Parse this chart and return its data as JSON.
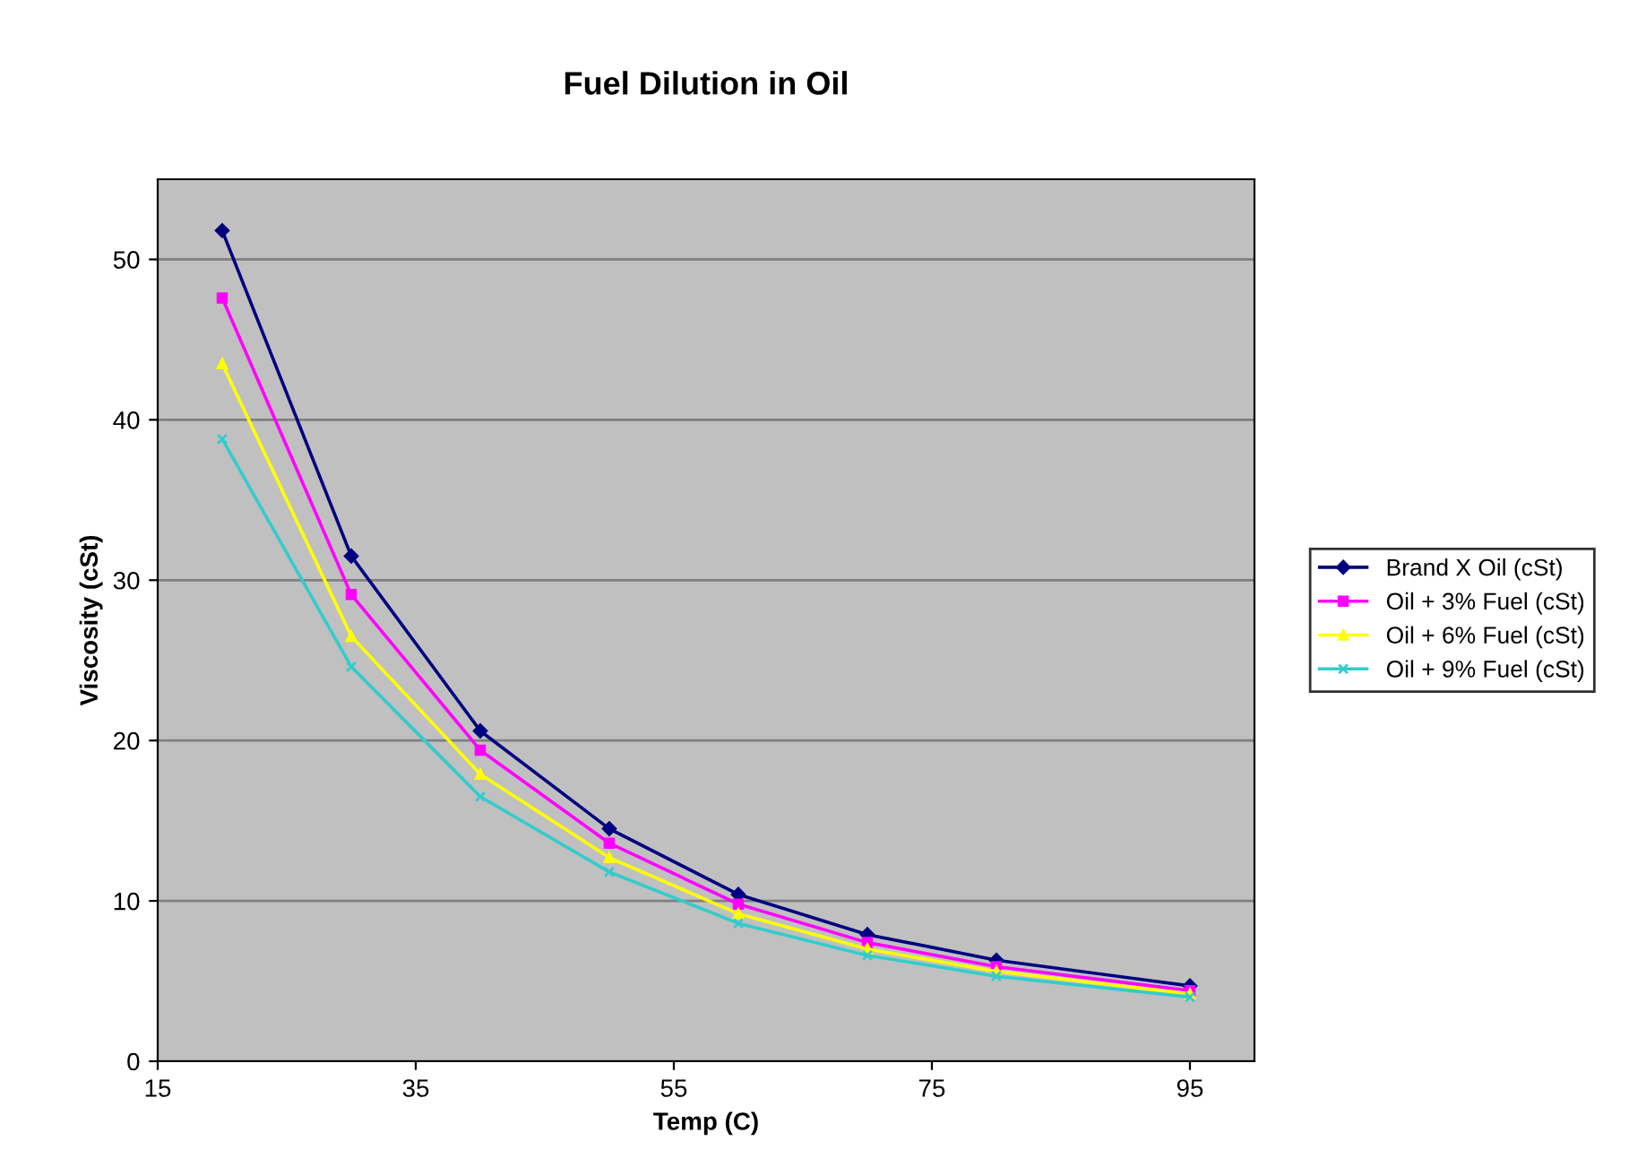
{
  "chart_data": {
    "type": "line",
    "title": "Fuel Dilution in Oil",
    "xlabel": "Temp (C)",
    "ylabel": "Viscosity (cSt)",
    "x": [
      20,
      30,
      40,
      50,
      60,
      70,
      80,
      95
    ],
    "series": [
      {
        "name": "Brand X Oil (cSt)",
        "color": "#000080",
        "marker": "diamond",
        "values": [
          51.8,
          31.5,
          20.6,
          14.5,
          10.4,
          7.9,
          6.3,
          4.7
        ]
      },
      {
        "name": "Oil + 3% Fuel (cSt)",
        "color": "#ff00ff",
        "marker": "square",
        "values": [
          47.6,
          29.1,
          19.4,
          13.6,
          9.8,
          7.4,
          5.9,
          4.4
        ]
      },
      {
        "name": "Oil + 6% Fuel (cSt)",
        "color": "#ffff00",
        "marker": "triangle",
        "values": [
          43.5,
          26.5,
          17.9,
          12.7,
          9.2,
          7.0,
          5.6,
          4.2
        ]
      },
      {
        "name": "Oil + 9% Fuel (cSt)",
        "color": "#33cccc",
        "marker": "cross",
        "values": [
          38.8,
          24.6,
          16.5,
          11.8,
          8.6,
          6.6,
          5.3,
          4.0
        ]
      }
    ],
    "xlim": [
      15,
      100
    ],
    "xticks": [
      15,
      35,
      55,
      75,
      95
    ],
    "ylim": [
      0,
      55
    ],
    "yticks": [
      0,
      10,
      20,
      30,
      40,
      50
    ],
    "grid": "y",
    "legend": "right",
    "line_style": "solid"
  }
}
